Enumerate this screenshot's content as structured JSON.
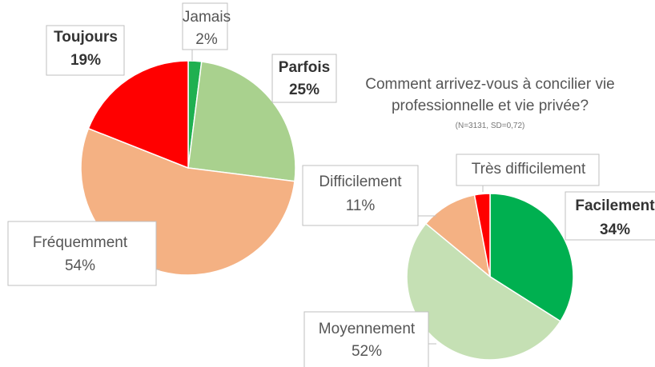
{
  "chart_data": [
    {
      "type": "pie",
      "categories": [
        "Jamais",
        "Parfois",
        "Fréquemment",
        "Toujours"
      ],
      "values": [
        2,
        25,
        54,
        19
      ],
      "value_labels": [
        "2%",
        "25%",
        "54%",
        "19%"
      ],
      "colors": [
        "#1fb050",
        "#a9d18e",
        "#f4b183",
        "#ff0000"
      ]
    },
    {
      "type": "pie",
      "title": "Comment arrivez-vous à concilier vie professionnelle et vie privée?",
      "subtitle": "(N=3131, SD=0,72)",
      "categories": [
        "Facilement",
        "Moyennement",
        "Difficilement",
        "Très difficilement"
      ],
      "values": [
        34,
        52,
        11,
        3
      ],
      "value_labels": [
        "34%",
        "52%",
        "11%",
        null
      ],
      "colors": [
        "#00b050",
        "#c5e0b4",
        "#f4b183",
        "#ff0000"
      ]
    }
  ]
}
